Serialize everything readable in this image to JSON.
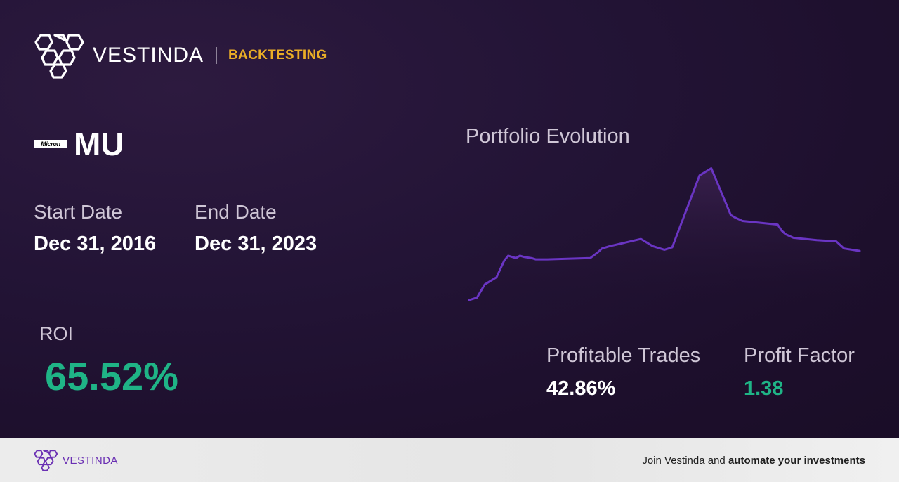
{
  "header": {
    "brand_name": "VESTINDA",
    "tag": "BACKTESTING",
    "logo_icon": "vestinda-hexagon-logo-icon"
  },
  "ticker": {
    "company_logo_text": "Micron",
    "symbol": "MU"
  },
  "dates": {
    "start_label": "Start Date",
    "start_value": "Dec 31, 2016",
    "end_label": "End Date",
    "end_value": "Dec 31, 2023"
  },
  "roi": {
    "label": "ROI",
    "value": "65.52%"
  },
  "chart": {
    "title": "Portfolio Evolution"
  },
  "chart_data": {
    "type": "area",
    "title": "Portfolio Evolution",
    "grid": false,
    "legend": "none",
    "x": [
      0,
      2,
      4,
      7,
      9,
      10,
      12,
      13,
      14,
      16,
      17,
      20,
      31,
      33,
      34,
      36,
      44,
      47,
      50,
      52,
      59,
      60,
      61,
      62,
      67,
      68,
      70,
      79,
      80,
      81,
      83,
      89,
      94,
      96,
      100
    ],
    "y": [
      0,
      2,
      13,
      19,
      33,
      37,
      35,
      37,
      36,
      35,
      34,
      34,
      35,
      40,
      43,
      45,
      51,
      45,
      42,
      44,
      104,
      106,
      108,
      110,
      71,
      69,
      66,
      63,
      58,
      55,
      52,
      50,
      49,
      43,
      41
    ],
    "ylim": [
      0,
      115
    ],
    "colors": {
      "line": "#6a35c3",
      "fill_top": "#3b2150"
    }
  },
  "stats": {
    "trades_label": "Profitable Trades",
    "trades_value": "42.86%",
    "pf_label": "Profit Factor",
    "pf_value": "1.38"
  },
  "footer": {
    "brand_name": "VESTINDA",
    "cta_prefix": "Join Vestinda and ",
    "cta_bold": "automate your investments"
  },
  "colors": {
    "background": "#1c0f2b",
    "accent_gold": "#e9ad26",
    "positive_green": "#1fb486",
    "brand_purple": "#6a2fb3"
  }
}
